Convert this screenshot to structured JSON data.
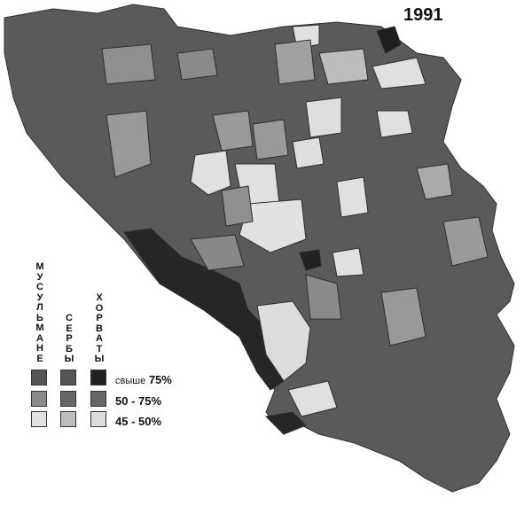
{
  "title": "1991",
  "legend": {
    "groups": [
      {
        "label": "МУСУЛЬМАНЕ",
        "colors": [
          "#555555",
          "#8a8a8a",
          "#e2e2e2"
        ]
      },
      {
        "label": "СЕРБЫ",
        "colors": [
          "#555555",
          "#666666",
          "#bdbdbd"
        ]
      },
      {
        "label": "ХОРВАТЫ",
        "colors": [
          "#222222",
          "#666666",
          "#dcdcdc"
        ]
      }
    ],
    "ranges": [
      {
        "prefix": "свыше",
        "value": "75%"
      },
      {
        "prefix": "",
        "value": "50 - 75%"
      },
      {
        "prefix": "",
        "value": "45 - 50%"
      }
    ]
  },
  "colors": {
    "border": "#333333",
    "background": "#ffffff"
  }
}
